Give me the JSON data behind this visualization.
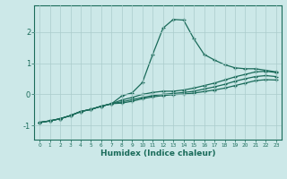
{
  "xlabel": "Humidex (Indice chaleur)",
  "background_color": "#cce8e8",
  "grid_color": "#aacccc",
  "line_color": "#1a6b5a",
  "xlim": [
    -0.5,
    23.5
  ],
  "ylim": [
    -1.45,
    2.85
  ],
  "yticks": [
    -1,
    0,
    1,
    2
  ],
  "xticks": [
    0,
    1,
    2,
    3,
    4,
    5,
    6,
    7,
    8,
    9,
    10,
    11,
    12,
    13,
    14,
    15,
    16,
    17,
    18,
    19,
    20,
    21,
    22,
    23
  ],
  "line1_x": [
    0,
    1,
    2,
    3,
    4,
    5,
    6,
    7,
    8,
    9,
    10,
    11,
    12,
    13,
    14,
    15,
    16,
    17,
    18,
    19,
    20,
    21,
    22,
    23
  ],
  "line1_y": [
    -0.9,
    -0.85,
    -0.78,
    -0.68,
    -0.55,
    -0.48,
    -0.38,
    -0.3,
    -0.05,
    0.05,
    0.38,
    1.28,
    2.12,
    2.4,
    2.38,
    1.78,
    1.28,
    1.1,
    0.95,
    0.85,
    0.82,
    0.82,
    0.77,
    0.72
  ],
  "line2_x": [
    0,
    1,
    2,
    3,
    4,
    5,
    6,
    7,
    8,
    9,
    10,
    11,
    12,
    13,
    14,
    15,
    16,
    17,
    18,
    19,
    20,
    21,
    22,
    23
  ],
  "line2_y": [
    -0.9,
    -0.85,
    -0.78,
    -0.68,
    -0.55,
    -0.48,
    -0.38,
    -0.3,
    -0.18,
    -0.1,
    0.0,
    0.06,
    0.1,
    0.1,
    0.14,
    0.2,
    0.28,
    0.36,
    0.46,
    0.56,
    0.64,
    0.72,
    0.74,
    0.7
  ],
  "line3_x": [
    0,
    1,
    2,
    3,
    4,
    5,
    6,
    7,
    8,
    9,
    10,
    11,
    12,
    13,
    14,
    15,
    16,
    17,
    18,
    19,
    20,
    21,
    22,
    23
  ],
  "line3_y": [
    -0.9,
    -0.85,
    -0.78,
    -0.68,
    -0.55,
    -0.48,
    -0.38,
    -0.3,
    -0.24,
    -0.17,
    -0.1,
    -0.04,
    0.0,
    0.03,
    0.06,
    0.1,
    0.17,
    0.24,
    0.32,
    0.42,
    0.5,
    0.57,
    0.6,
    0.57
  ],
  "line4_x": [
    0,
    1,
    2,
    3,
    4,
    5,
    6,
    7,
    8,
    9,
    10,
    11,
    12,
    13,
    14,
    15,
    16,
    17,
    18,
    19,
    20,
    21,
    22,
    23
  ],
  "line4_y": [
    -0.9,
    -0.85,
    -0.78,
    -0.68,
    -0.55,
    -0.48,
    -0.38,
    -0.3,
    -0.28,
    -0.22,
    -0.14,
    -0.08,
    -0.04,
    -0.01,
    0.01,
    0.04,
    0.09,
    0.14,
    0.2,
    0.28,
    0.36,
    0.44,
    0.47,
    0.46
  ]
}
